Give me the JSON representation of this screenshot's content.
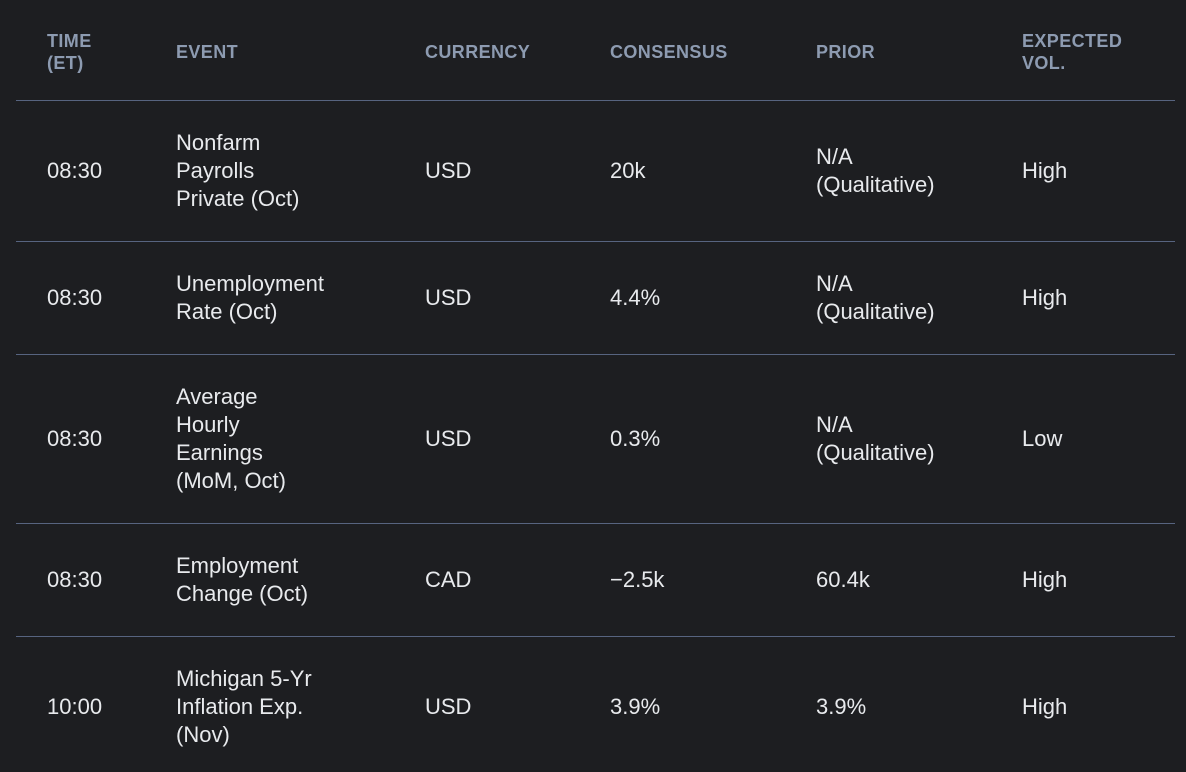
{
  "table": {
    "title": "economic-calendar",
    "columns": [
      {
        "key": "time",
        "label": "TIME\n(ET)"
      },
      {
        "key": "event",
        "label": "EVENT"
      },
      {
        "key": "currency",
        "label": "CURRENCY"
      },
      {
        "key": "consensus",
        "label": "CONSENSUS"
      },
      {
        "key": "prior",
        "label": "PRIOR"
      },
      {
        "key": "expected_vol",
        "label": "EXPECTED\nVOL."
      }
    ],
    "rows": [
      {
        "time": "08:30",
        "event": "Nonfarm\nPayrolls\nPrivate (Oct)",
        "currency": "USD",
        "consensus": "20k",
        "prior": "N/A\n(Qualitative)",
        "expected_vol": "High"
      },
      {
        "time": "08:30",
        "event": "Unemployment\nRate (Oct)",
        "currency": "USD",
        "consensus": "4.4%",
        "prior": "N/A\n(Qualitative)",
        "expected_vol": "High"
      },
      {
        "time": "08:30",
        "event": "Average\nHourly\nEarnings\n(MoM, Oct)",
        "currency": "USD",
        "consensus": "0.3%",
        "prior": "N/A\n(Qualitative)",
        "expected_vol": "Low"
      },
      {
        "time": "08:30",
        "event": "Employment\nChange (Oct)",
        "currency": "CAD",
        "consensus": "−2.5k",
        "prior": "60.4k",
        "expected_vol": "High"
      },
      {
        "time": "10:00",
        "event": "Michigan 5-Yr\nInflation Exp.\n(Nov)",
        "currency": "USD",
        "consensus": "3.9%",
        "prior": "3.9%",
        "expected_vol": "High"
      }
    ]
  },
  "colors": {
    "background": "#1d1e21",
    "divider": "#576480",
    "header_text": "#8d9bb1",
    "body_text": "#e8eaed"
  }
}
